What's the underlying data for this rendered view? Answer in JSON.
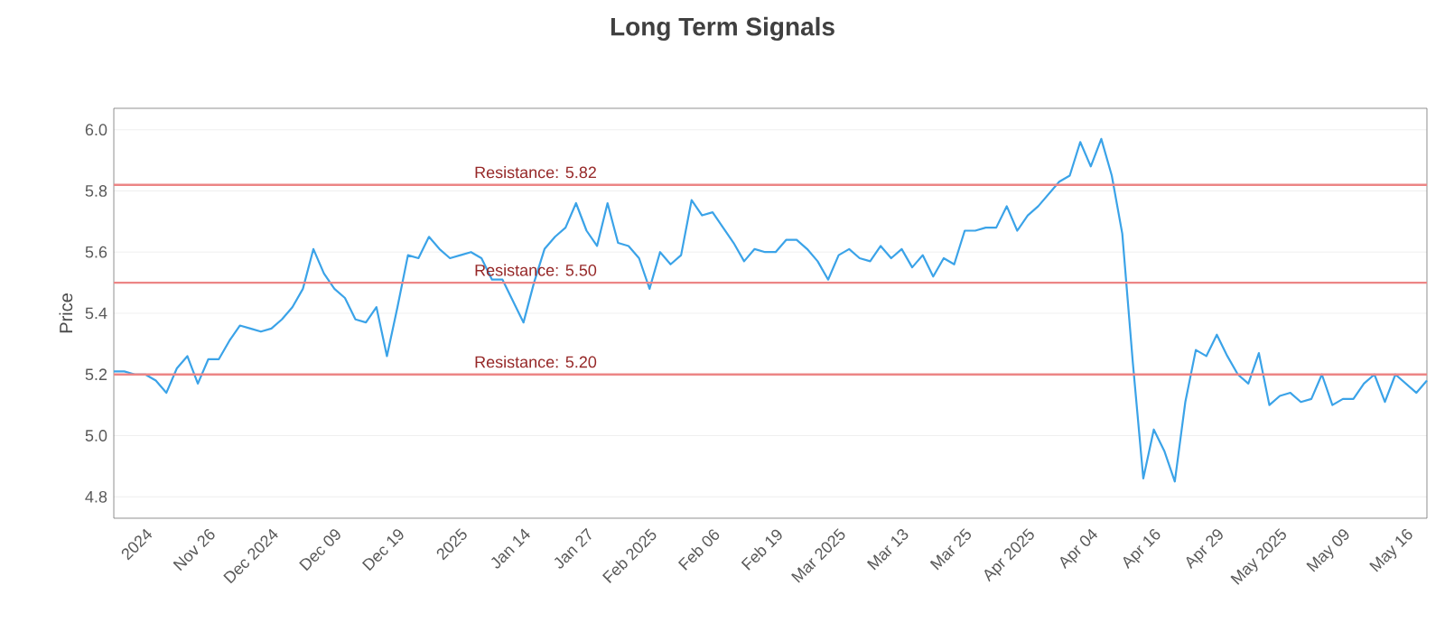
{
  "chart_data": {
    "type": "line",
    "title": "Long Term Signals",
    "ylabel": "Price",
    "categories": [
      null,
      null,
      null,
      "2024",
      null,
      null,
      null,
      null,
      null,
      "Nov 26",
      null,
      null,
      null,
      null,
      null,
      "Dec 2024",
      null,
      null,
      null,
      null,
      null,
      "Dec 09",
      null,
      null,
      null,
      null,
      null,
      "Dec 19",
      null,
      null,
      null,
      null,
      null,
      "2025",
      null,
      null,
      null,
      null,
      null,
      "Jan 14",
      null,
      null,
      null,
      null,
      null,
      "Jan 27",
      null,
      null,
      null,
      null,
      null,
      "Feb 2025",
      null,
      null,
      null,
      null,
      null,
      "Feb 06",
      null,
      null,
      null,
      null,
      null,
      "Feb 19",
      null,
      null,
      null,
      null,
      null,
      "Mar 2025",
      null,
      null,
      null,
      null,
      null,
      "Mar 13",
      null,
      null,
      null,
      null,
      null,
      "Mar 25",
      null,
      null,
      null,
      null,
      null,
      "Apr 2025",
      null,
      null,
      null,
      null,
      null,
      "Apr 04",
      null,
      null,
      null,
      null,
      null,
      "Apr 16",
      null,
      null,
      null,
      null,
      null,
      "Apr 29",
      null,
      null,
      null,
      null,
      null,
      "May 2025",
      null,
      null,
      null,
      null,
      null,
      "May 09",
      null,
      null,
      null,
      null,
      null,
      "May 16",
      null,
      null
    ],
    "series": [
      {
        "color": "#3ba3e8",
        "values": [
          5.21,
          5.21,
          5.2,
          5.2,
          5.18,
          5.14,
          5.22,
          5.26,
          5.17,
          5.25,
          5.25,
          5.31,
          5.36,
          5.35,
          5.34,
          5.35,
          5.38,
          5.42,
          5.48,
          5.61,
          5.53,
          5.48,
          5.45,
          5.38,
          5.37,
          5.42,
          5.26,
          5.42,
          5.59,
          5.58,
          5.65,
          5.61,
          5.58,
          5.59,
          5.6,
          5.58,
          5.51,
          5.51,
          5.44,
          5.37,
          5.5,
          5.61,
          5.65,
          5.68,
          5.76,
          5.67,
          5.62,
          5.76,
          5.63,
          5.62,
          5.58,
          5.48,
          5.6,
          5.56,
          5.59,
          5.77,
          5.72,
          5.73,
          5.68,
          5.63,
          5.57,
          5.61,
          5.6,
          5.6,
          5.64,
          5.64,
          5.61,
          5.57,
          5.51,
          5.59,
          5.61,
          5.58,
          5.57,
          5.62,
          5.58,
          5.61,
          5.55,
          5.59,
          5.52,
          5.58,
          5.56,
          5.67,
          5.67,
          5.68,
          5.68,
          5.75,
          5.67,
          5.72,
          5.75,
          5.79,
          5.83,
          5.85,
          5.96,
          5.88,
          5.97,
          5.85,
          5.66,
          5.24,
          4.86,
          5.02,
          4.95,
          4.85,
          5.11,
          5.28,
          5.26,
          5.33,
          5.26,
          5.2,
          5.17,
          5.27,
          5.1,
          5.13,
          5.14,
          5.11,
          5.12,
          5.2,
          5.1,
          5.12,
          5.12,
          5.17,
          5.2,
          5.11,
          5.2,
          5.17,
          5.14,
          5.18
        ]
      }
    ],
    "ylim": [
      4.73,
      6.07
    ],
    "yticks": [
      4.8,
      {
        "value": 5.0,
        "label": "5.0"
      },
      5.2,
      5.4,
      5.6,
      5.8,
      {
        "value": 6.0,
        "label": "6.0"
      }
    ],
    "grid": "y",
    "marker": "none",
    "line_style": "solid",
    "ref_lines": [
      {
        "axis": "y",
        "value": 5.82,
        "label": "Resistance: 5.82",
        "color": "#ec8585"
      },
      {
        "axis": "y",
        "value": 5.5,
        "label": "Resistance: 5.50",
        "color": "#ec8585"
      },
      {
        "axis": "y",
        "value": 5.2,
        "label": "Resistance: 5.20",
        "color": "#ec8585"
      }
    ]
  }
}
